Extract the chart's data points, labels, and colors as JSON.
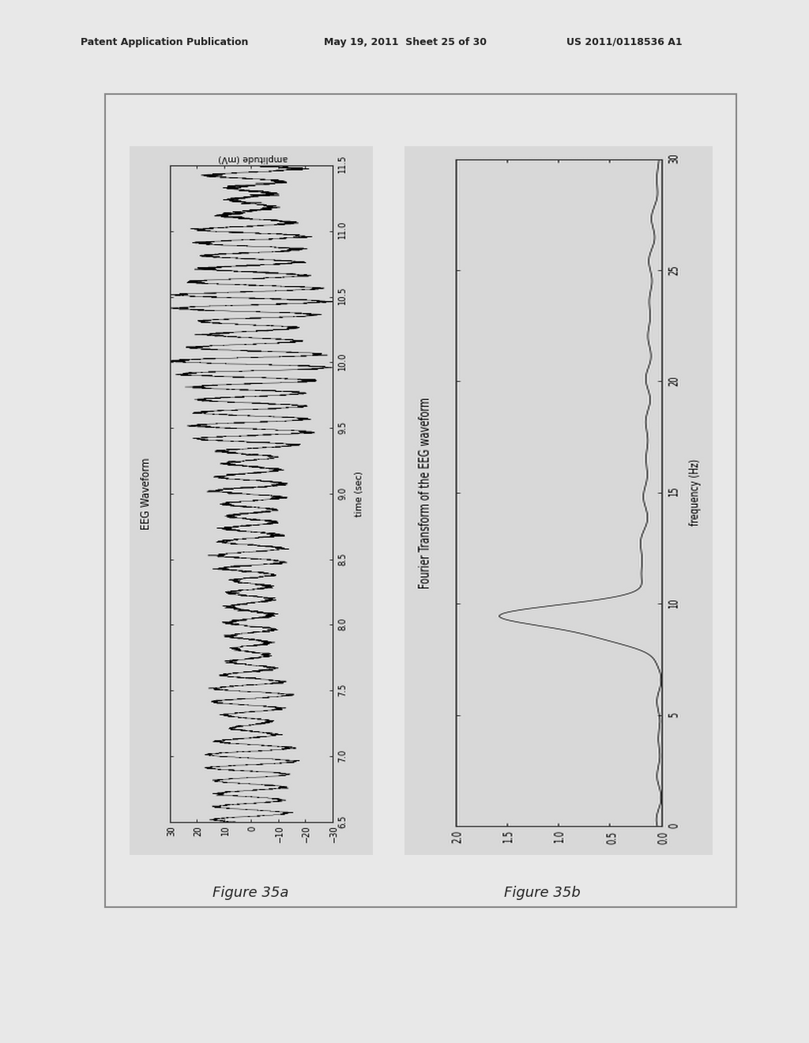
{
  "header_left": "Patent Application Publication",
  "header_middle": "May 19, 2011  Sheet 25 of 30",
  "header_right": "US 2011/0118536 A1",
  "fig35a_label": "Figure 35a",
  "fig35b_label": "Figure 35b",
  "eeg_title": "EEG Waveform",
  "eeg_xlabel": "time (sec)",
  "eeg_ylabel": "amplitude (mV)",
  "eeg_xlim": [
    6.5,
    11.5
  ],
  "eeg_ylim": [
    -30,
    30
  ],
  "eeg_xticks": [
    6.5,
    7.0,
    7.5,
    8.0,
    8.5,
    9.0,
    9.5,
    10.0,
    10.5,
    11.0,
    11.5
  ],
  "eeg_yticks": [
    30,
    20,
    10,
    0,
    -10,
    -20,
    -30
  ],
  "fft_title": "Fourier Transform of the EEG waveform",
  "fft_xlabel": "frequency (Hz)",
  "fft_ylabel": "",
  "fft_xlim": [
    0,
    30
  ],
  "fft_ylim": [
    0,
    2
  ],
  "fft_xticks": [
    0,
    5,
    10,
    15,
    20,
    25,
    30
  ],
  "fft_yticks": [
    0,
    0.5,
    1.0,
    1.5,
    2.0
  ],
  "background_color": "#e8e8e8",
  "plot_bg": "#e0e0e0",
  "line_color": "#000000",
  "border_color": "#333333",
  "outer_rect_color": "#cccccc"
}
